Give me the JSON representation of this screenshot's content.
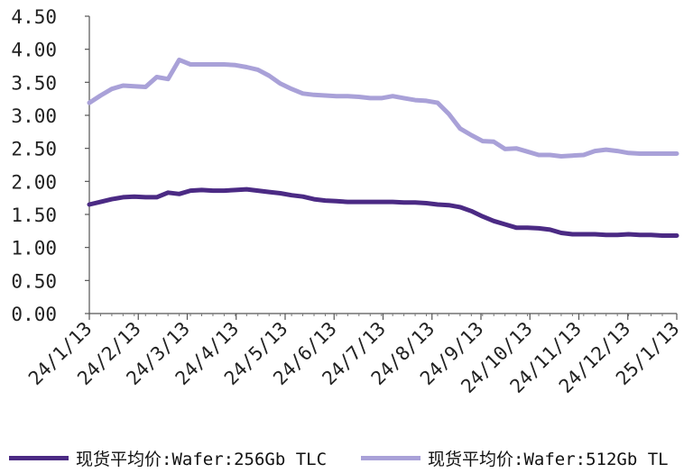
{
  "chart_data": {
    "type": "line",
    "title": "",
    "xlabel": "",
    "ylabel": "",
    "ylim": [
      0,
      4.5
    ],
    "y_ticks": [
      "0.00",
      "0.50",
      "1.00",
      "1.50",
      "2.00",
      "2.50",
      "3.00",
      "3.50",
      "4.00",
      "4.50"
    ],
    "x_tick_labels": [
      "24/1/13",
      "24/2/13",
      "24/3/13",
      "24/4/13",
      "24/5/13",
      "24/6/13",
      "24/7/13",
      "24/8/13",
      "24/9/13",
      "24/10/13",
      "24/11/13",
      "24/12/13",
      "25/1/13"
    ],
    "grid": false,
    "legend_position": "bottom",
    "x": [
      "2024-01-13",
      "2024-01-20",
      "2024-01-27",
      "2024-02-03",
      "2024-02-10",
      "2024-02-17",
      "2024-02-24",
      "2024-03-02",
      "2024-03-09",
      "2024-03-16",
      "2024-03-23",
      "2024-03-30",
      "2024-04-06",
      "2024-04-13",
      "2024-04-20",
      "2024-04-27",
      "2024-05-04",
      "2024-05-11",
      "2024-05-18",
      "2024-05-25",
      "2024-06-01",
      "2024-06-08",
      "2024-06-15",
      "2024-06-22",
      "2024-06-29",
      "2024-07-06",
      "2024-07-13",
      "2024-07-20",
      "2024-07-27",
      "2024-08-03",
      "2024-08-10",
      "2024-08-17",
      "2024-08-24",
      "2024-08-31",
      "2024-09-07",
      "2024-09-14",
      "2024-09-21",
      "2024-09-28",
      "2024-10-05",
      "2024-10-12",
      "2024-10-19",
      "2024-10-26",
      "2024-11-02",
      "2024-11-09",
      "2024-11-16",
      "2024-11-23",
      "2024-11-30",
      "2024-12-07",
      "2024-12-14",
      "2024-12-21",
      "2024-12-28",
      "2025-01-04",
      "2025-01-13"
    ],
    "series": [
      {
        "name": "现货平均价:Wafer:256Gb TLC",
        "color": "#4b2a84",
        "values": [
          1.65,
          1.69,
          1.73,
          1.76,
          1.77,
          1.76,
          1.76,
          1.83,
          1.81,
          1.86,
          1.87,
          1.86,
          1.86,
          1.87,
          1.88,
          1.86,
          1.84,
          1.82,
          1.79,
          1.77,
          1.73,
          1.71,
          1.7,
          1.69,
          1.69,
          1.69,
          1.69,
          1.69,
          1.68,
          1.68,
          1.67,
          1.65,
          1.64,
          1.61,
          1.55,
          1.47,
          1.4,
          1.35,
          1.3,
          1.3,
          1.29,
          1.27,
          1.22,
          1.2,
          1.2,
          1.2,
          1.19,
          1.19,
          1.2,
          1.19,
          1.19,
          1.18,
          1.18
        ]
      },
      {
        "name": "现货平均价:Wafer:512Gb TL",
        "color": "#a9a1d8",
        "values": [
          3.19,
          3.3,
          3.4,
          3.45,
          3.44,
          3.43,
          3.58,
          3.55,
          3.84,
          3.77,
          3.77,
          3.77,
          3.77,
          3.76,
          3.73,
          3.69,
          3.6,
          3.48,
          3.4,
          3.33,
          3.31,
          3.3,
          3.29,
          3.29,
          3.28,
          3.26,
          3.26,
          3.29,
          3.26,
          3.23,
          3.22,
          3.19,
          3.02,
          2.8,
          2.7,
          2.61,
          2.6,
          2.49,
          2.5,
          2.45,
          2.4,
          2.4,
          2.38,
          2.39,
          2.4,
          2.46,
          2.48,
          2.46,
          2.43,
          2.42,
          2.42,
          2.42,
          2.42
        ]
      }
    ]
  }
}
